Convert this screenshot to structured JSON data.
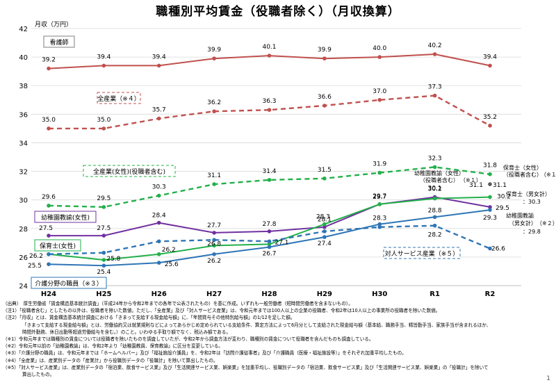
{
  "page": {
    "title": "職種別平均賃金（役職者除く）（月収換算）",
    "page_number": "1"
  },
  "chart_data": {
    "type": "line",
    "ylabel": "月収（万円）",
    "ylim": [
      24,
      42
    ],
    "yticks": [
      "24",
      "26",
      "28",
      "30",
      "32",
      "34",
      "36",
      "38",
      "40",
      "42"
    ],
    "categories": [
      "H24",
      "H25",
      "H26",
      "H27",
      "H28",
      "H29",
      "H30",
      "R1",
      "R2"
    ],
    "series": [
      {
        "name": "看護師",
        "color": "#c0504d",
        "dash": false,
        "values": [
          39.2,
          39.4,
          39.4,
          39.9,
          40.1,
          39.9,
          40.0,
          40.2,
          39.4
        ],
        "labels": [
          "39.2",
          "39.4",
          "39.4",
          "39.9",
          "40.1",
          "39.9",
          "40.0",
          "40.2",
          "39.4"
        ]
      },
      {
        "name": "全産業（※４）",
        "color": "#c0504d",
        "dash": true,
        "values": [
          35.0,
          35.0,
          35.7,
          36.2,
          36.3,
          36.6,
          37.0,
          37.3,
          35.2
        ],
        "labels": [
          "35.0",
          "35.0",
          "35.7",
          "36.2",
          "36.3",
          "36.6",
          "37.0",
          "37.3",
          "35.2"
        ]
      },
      {
        "name": "全産業(女性)(役職者含む)",
        "color": "#22b04a",
        "dash": true,
        "values": [
          29.6,
          29.5,
          30.3,
          31.1,
          31.4,
          31.5,
          31.9,
          32.3,
          31.8
        ],
        "labels": [
          "29.6",
          "29.5",
          "30.3",
          "31.1",
          "31.4",
          "31.5",
          "31.9",
          "32.3",
          "31.8"
        ]
      },
      {
        "name": "幼稚園教諭(女性)",
        "color": "#7030a0",
        "dash": false,
        "values": [
          27.5,
          27.5,
          28.4,
          27.7,
          27.8,
          28.1,
          29.7,
          30.2,
          29.5
        ],
        "labels": [
          "27.5",
          "27.5",
          "28.4",
          "27.7",
          "27.8",
          "28.1",
          "29.7",
          "30.2",
          "29.5"
        ]
      },
      {
        "name": "保育士(女性)",
        "color": "#22b04a",
        "dash": false,
        "values": [
          26.2,
          25.8,
          26.2,
          26.8,
          26.9,
          28.3,
          29.7,
          30.1,
          30.2
        ],
        "labels": [
          "26.2",
          "25.8",
          "26.2",
          "26.8",
          "",
          "28.3",
          "29.7",
          "30.1",
          "30.2"
        ]
      },
      {
        "name": "介護分野の職員（※３）",
        "color": "#2e75b6",
        "dash": false,
        "values": [
          25.5,
          25.4,
          25.6,
          26.2,
          26.7,
          27.4,
          28.3,
          28.8,
          29.3
        ],
        "labels": [
          "25.5",
          "25.4",
          "25.6",
          "26.2",
          "26.7",
          "27.4",
          "28.3",
          "28.8",
          "29.3"
        ]
      },
      {
        "name": "対人サービス産業（※５）",
        "color": "#2e75b6",
        "dash": true,
        "values": [
          26.2,
          26.3,
          27.1,
          27.2,
          27.1,
          27.8,
          28.1,
          28.2,
          26.6
        ],
        "labels": [
          "",
          "",
          "",
          "",
          "27.1",
          "",
          "",
          "28.2",
          "26.6"
        ]
      }
    ],
    "extra_labels": {
      "kyoyu_incl": "31.1",
      "hoikushi_all": "31.1",
      "hoikushi_all_label": "保育士（女性）",
      "hoikushi_all_label2": "（役職者含む）",
      "hoikushi_all_note": "（※１）",
      "kyoyu_label1": "幼稚園教諭（女性）",
      "kyoyu_label2": "（役職者含む）",
      "kyoyu_note": "（※１）",
      "hoikushi_mf_label": "保育士（男女計）",
      "hoikushi_mf_value": "：30.3",
      "kyoyu_mf_label1": "幼稚園教諭",
      "kyoyu_mf_label2": "（男女計）",
      "kyoyu_mf_note": "（※２）",
      "kyoyu_mf_value": "：29.8"
    }
  },
  "notes": [
    {
      "text": "（出典）　厚生労働省「賃金構造基本統計調査」（平成24年から令和2年までの各年で公表されたもの）を基に作成。いずれも一般労働者（短時間労働者を含まないもの）。",
      "indent": false
    },
    {
      "text": "（注1）「役職者含む」としたもの以外は、役職者を除いた数値。ただし、「全産業」及び「対人サービス産業」は、令和元年までは100人以上の企業の役職者、令和2年は10人以上の事業所の役職者を除いた数値。",
      "indent": false
    },
    {
      "text": "（注2）「月収」とは、賃金構造基本統計調査における「きまって支給する現金給与額」に、「年間賞与その他特別給与額」の1/12を足した額。",
      "indent": false
    },
    {
      "text": "「きまって支給する現金給与額」とは、労働協約又は就業規則などによってあらかじめ定められている支給条件、算定方法によって6月分として支給された現金給与額（基本給、職務手当、精皆勤手当、家族手当が含まれるほか、",
      "indent": true
    },
    {
      "text": "時間外勤務、休日出勤等超過労働給与を含む。）のこと。いわゆる手取り額でなく、税込み額である。",
      "indent": true
    },
    {
      "text": "（※1）令和元年までは職種別の賃金については役職者を除いたものを調査していたが、令和2年から調査方法が変わり、職種別の賃金について役職者を含んだものも調査している。",
      "indent": false
    },
    {
      "text": "（※2）令和元年以前の「幼稚園教諭」は、令和2年より「幼稚園教員、保育教諭」に区分を変更している。",
      "indent": false
    },
    {
      "text": "（※3）「介護分野の職員」は、令和元年までは「ホームヘルパー」及び「福祉施設介護員」を、令和2年は「訪問介護従事者」及び「介護職員（医療・福祉施設等）」をそれぞれ加重平均したもの。",
      "indent": false
    },
    {
      "text": "（※4）「全産業」は、産業別データの「産業計」から役職別データの「役職計」を除いて算出したもの。",
      "indent": false
    },
    {
      "text": "（※5）「対人サービス産業」は、産業別データの「宿泊業、飲食サービス業」及び「生活関連サービス業、娯楽業」を加重平均し、役職別データの「宿泊業、飲食サービス業」及び「生活関連サービス業、娯楽業」の「役職計」を除いて",
      "indent": false
    },
    {
      "text": "算出したもの。",
      "indent": true
    }
  ]
}
